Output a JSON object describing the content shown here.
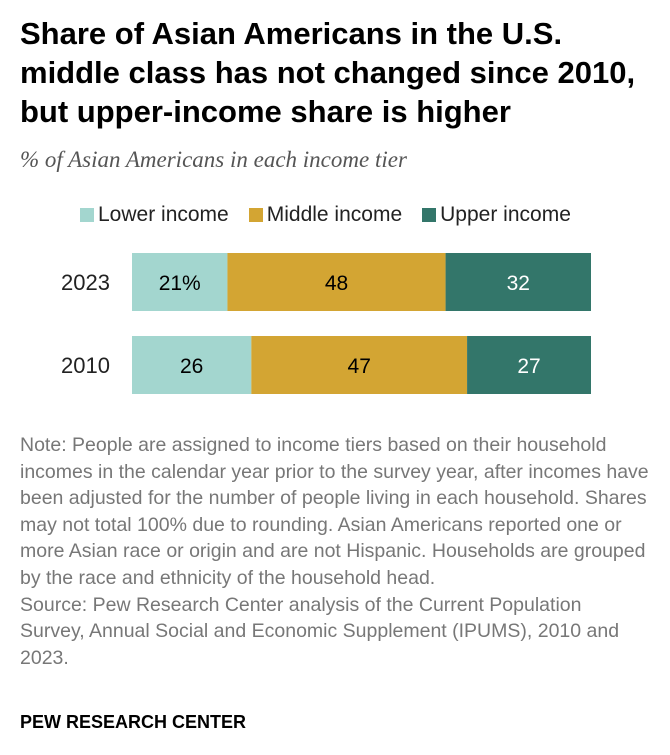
{
  "title": "Share of Asian Americans in the U.S. middle class has not changed since 2010, but upper-income share is higher",
  "subtitle": "% of Asian Americans in each income tier",
  "legend": [
    {
      "label": "Lower income",
      "color": "#a3d6cf"
    },
    {
      "label": "Middle income",
      "color": "#d3a533"
    },
    {
      "label": "Upper income",
      "color": "#33766a"
    }
  ],
  "chart_data": {
    "type": "bar",
    "orientation": "horizontal",
    "stacked": true,
    "categories": [
      "2023",
      "2010"
    ],
    "series": [
      {
        "name": "Lower income",
        "color": "#a3d6cf",
        "values": [
          21,
          26
        ],
        "labels": [
          "21%",
          "26"
        ]
      },
      {
        "name": "Middle income",
        "color": "#d3a533",
        "values": [
          48,
          47
        ],
        "labels": [
          "48",
          "47"
        ]
      },
      {
        "name": "Upper income",
        "color": "#33766a",
        "values": [
          32,
          27
        ],
        "labels": [
          "32",
          "27"
        ]
      }
    ]
  },
  "note": "Note: People are assigned to income tiers based on their household incomes in the calendar year prior to the survey year, after incomes have been adjusted for the number of people living in each household. Shares may not total 100% due to rounding. Asian Americans reported one or more Asian race or origin and are not Hispanic. Households are grouped by the race and ethnicity of the household head.",
  "source": "Source: Pew Research Center analysis of the Current Population Survey, Annual Social and Economic Supplement (IPUMS), 2010 and 2023.",
  "footer": "PEW RESEARCH CENTER"
}
